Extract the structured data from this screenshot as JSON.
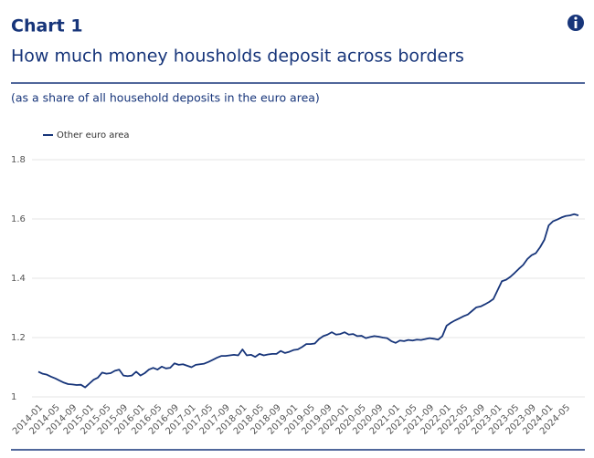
{
  "chart_data": {
    "type": "line",
    "title": "Chart 1",
    "subtitle": "How much money housholds deposit across borders",
    "note": "(as a share of all household deposits in the euro area)",
    "categories": [
      "2014-01",
      null,
      null,
      null,
      "2014-05",
      null,
      null,
      null,
      "2014-09",
      null,
      null,
      null,
      "2015-01",
      null,
      null,
      null,
      "2015-05",
      null,
      null,
      null,
      "2015-09",
      null,
      null,
      null,
      "2016-01",
      null,
      null,
      null,
      "2016-05",
      null,
      null,
      null,
      "2016-09",
      null,
      null,
      null,
      "2017-01",
      null,
      null,
      null,
      "2017-05",
      null,
      null,
      null,
      "2017-09",
      null,
      null,
      null,
      "2018-01",
      null,
      null,
      null,
      "2018-05",
      null,
      null,
      null,
      "2018-09",
      null,
      null,
      null,
      "2019-01",
      null,
      null,
      null,
      "2019-05",
      null,
      null,
      null,
      "2019-09",
      null,
      null,
      null,
      "2020-01",
      null,
      null,
      null,
      "2020-05",
      null,
      null,
      null,
      "2020-09",
      null,
      null,
      null,
      "2021-01",
      null,
      null,
      null,
      "2021-05",
      null,
      null,
      null,
      "2021-09",
      null,
      null,
      null,
      "2022-01",
      null,
      null,
      null,
      "2022-05",
      null,
      null,
      null,
      "2022-09",
      null,
      null,
      null,
      "2023-01",
      null,
      null,
      null,
      "2023-05",
      null,
      null,
      null,
      "2023-09",
      null,
      null,
      null,
      "2024-01",
      null,
      null,
      null,
      "2024-05",
      null,
      null,
      null
    ],
    "series": [
      {
        "name": "Other euro area",
        "color": "#17357a",
        "values": [
          1.085,
          1.078,
          1.075,
          1.068,
          1.062,
          1.055,
          1.048,
          1.043,
          1.042,
          1.04,
          1.041,
          1.032,
          1.045,
          1.058,
          1.065,
          1.082,
          1.078,
          1.08,
          1.088,
          1.092,
          1.072,
          1.07,
          1.072,
          1.085,
          1.072,
          1.08,
          1.092,
          1.098,
          1.092,
          1.102,
          1.096,
          1.098,
          1.113,
          1.108,
          1.11,
          1.105,
          1.1,
          1.108,
          1.11,
          1.112,
          1.118,
          1.125,
          1.132,
          1.138,
          1.138,
          1.14,
          1.142,
          1.14,
          1.16,
          1.14,
          1.142,
          1.135,
          1.145,
          1.14,
          1.143,
          1.145,
          1.145,
          1.155,
          1.148,
          1.152,
          1.158,
          1.16,
          1.168,
          1.178,
          1.178,
          1.18,
          1.195,
          1.205,
          1.21,
          1.218,
          1.21,
          1.212,
          1.218,
          1.21,
          1.212,
          1.205,
          1.206,
          1.198,
          1.202,
          1.205,
          1.203,
          1.2,
          1.198,
          1.188,
          1.182,
          1.19,
          1.188,
          1.192,
          1.19,
          1.193,
          1.192,
          1.195,
          1.198,
          1.196,
          1.193,
          1.205,
          1.24,
          1.25,
          1.258,
          1.265,
          1.272,
          1.278,
          1.29,
          1.302,
          1.305,
          1.312,
          1.32,
          1.33,
          1.36,
          1.39,
          1.395,
          1.405,
          1.418,
          1.432,
          1.445,
          1.465,
          1.478,
          1.485,
          1.505,
          1.53,
          1.578,
          1.592,
          1.598,
          1.605,
          1.61,
          1.612,
          1.616,
          1.612
        ]
      }
    ],
    "ylim": [
      1,
      1.8
    ],
    "yticks": [
      1,
      1.2,
      1.4,
      1.6,
      1.8
    ],
    "grid": true,
    "legend": "top-left"
  }
}
